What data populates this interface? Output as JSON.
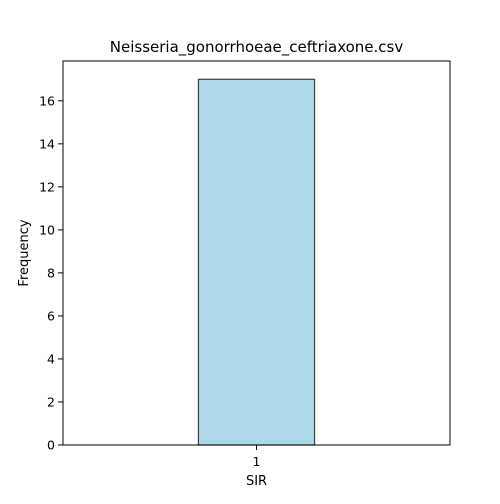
{
  "chart_data": {
    "type": "bar",
    "title": "Neisseria_gonorrhoeae_ceftriaxone.csv",
    "xlabel": "SIR",
    "ylabel": "Frequency",
    "categories": [
      "1"
    ],
    "values": [
      17
    ],
    "ylim": [
      0,
      17.85
    ],
    "yticks": [
      "0",
      "2",
      "4",
      "6",
      "8",
      "10",
      "12",
      "14",
      "16"
    ],
    "grid": false,
    "legend": "none",
    "colors": {
      "bar_fill": "#add8e6",
      "bar_edge": "#404040",
      "axes": "#000000",
      "background": "#ffffff"
    }
  }
}
